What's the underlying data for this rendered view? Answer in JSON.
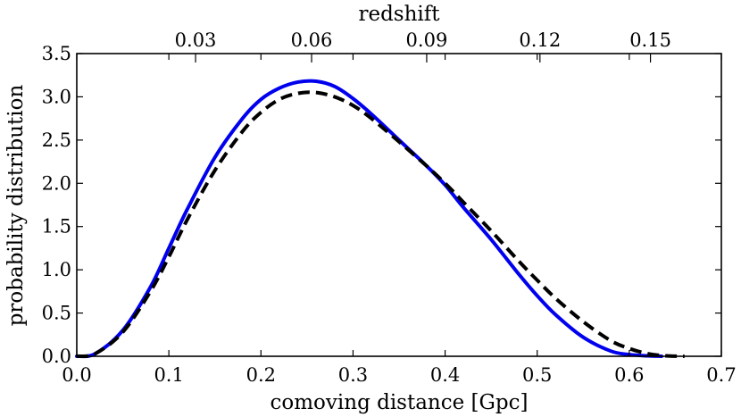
{
  "chart_data": {
    "type": "line",
    "xlabel": "comoving distance [Gpc]",
    "ylabel": "probability distribution",
    "top_xlabel": "redshift",
    "xlim": [
      0.0,
      0.7
    ],
    "ylim": [
      0.0,
      3.5
    ],
    "x_ticks": [
      0.0,
      0.1,
      0.2,
      0.3,
      0.4,
      0.5,
      0.6,
      0.7
    ],
    "x_tick_labels": [
      "0.0",
      "0.1",
      "0.2",
      "0.3",
      "0.4",
      "0.5",
      "0.6",
      "0.7"
    ],
    "y_ticks": [
      0.0,
      0.5,
      1.0,
      1.5,
      2.0,
      2.5,
      3.0,
      3.5
    ],
    "y_tick_labels": [
      "0.0",
      "0.5",
      "1.0",
      "1.5",
      "2.0",
      "2.5",
      "3.0",
      "3.5"
    ],
    "top_ticks": [
      {
        "label": "0.03",
        "distance": 0.129
      },
      {
        "label": "0.06",
        "distance": 0.255
      },
      {
        "label": "0.09",
        "distance": 0.38
      },
      {
        "label": "0.12",
        "distance": 0.503
      },
      {
        "label": "0.15",
        "distance": 0.623
      }
    ],
    "grid": false,
    "series": [
      {
        "name": "solid",
        "color": "#0000ee",
        "style": "solid",
        "x": [
          0.0,
          0.02,
          0.05,
          0.08,
          0.1,
          0.12,
          0.15,
          0.18,
          0.2,
          0.22,
          0.24,
          0.26,
          0.28,
          0.3,
          0.32,
          0.35,
          0.38,
          0.4,
          0.42,
          0.45,
          0.48,
          0.5,
          0.52,
          0.55,
          0.58,
          0.6,
          0.62,
          0.635
        ],
        "y": [
          0.0,
          0.03,
          0.3,
          0.8,
          1.25,
          1.7,
          2.3,
          2.75,
          2.97,
          3.1,
          3.17,
          3.18,
          3.12,
          2.98,
          2.8,
          2.5,
          2.2,
          1.98,
          1.72,
          1.35,
          0.95,
          0.7,
          0.48,
          0.22,
          0.06,
          0.02,
          0.005,
          0.0
        ]
      },
      {
        "name": "dashed",
        "color": "#000000",
        "style": "dashed",
        "x": [
          0.0,
          0.02,
          0.05,
          0.08,
          0.1,
          0.12,
          0.15,
          0.18,
          0.2,
          0.22,
          0.24,
          0.26,
          0.28,
          0.3,
          0.32,
          0.35,
          0.38,
          0.4,
          0.42,
          0.45,
          0.48,
          0.5,
          0.52,
          0.55,
          0.58,
          0.6,
          0.62,
          0.64,
          0.66
        ],
        "y": [
          0.0,
          0.03,
          0.28,
          0.75,
          1.15,
          1.58,
          2.15,
          2.6,
          2.82,
          2.97,
          3.04,
          3.05,
          3.0,
          2.9,
          2.75,
          2.48,
          2.2,
          2.0,
          1.78,
          1.45,
          1.1,
          0.88,
          0.67,
          0.4,
          0.18,
          0.09,
          0.03,
          0.005,
          0.0
        ]
      }
    ]
  }
}
